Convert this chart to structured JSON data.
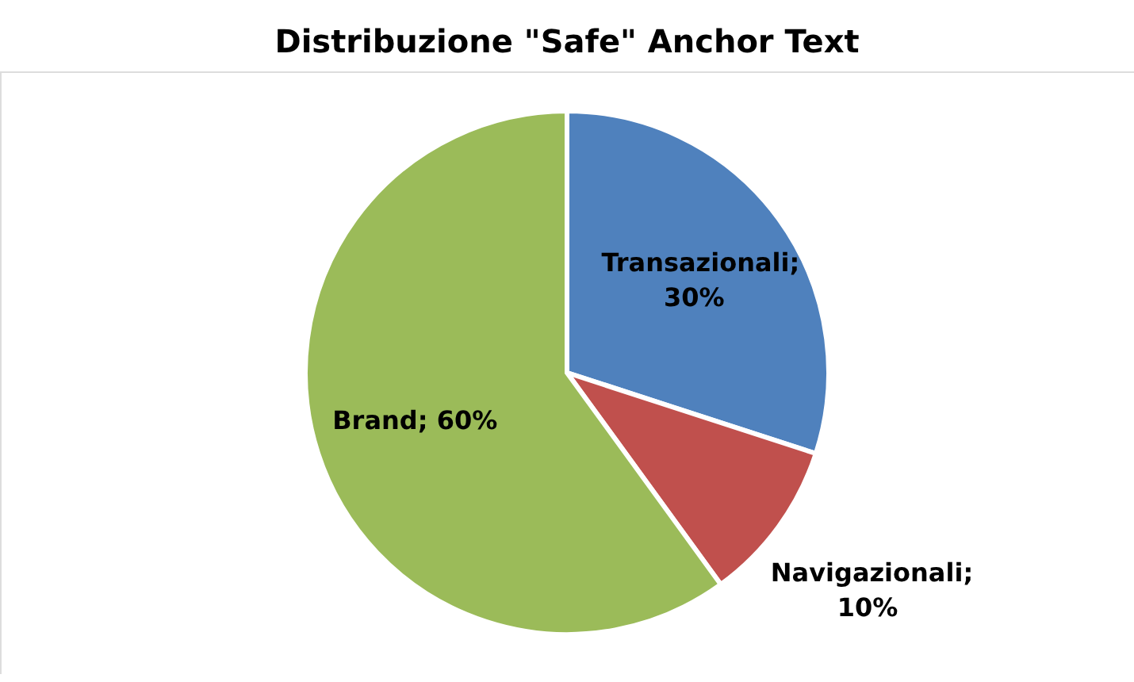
{
  "chart_data": {
    "type": "pie",
    "title": "Distribuzione \"Safe\" Anchor Text",
    "categories": [
      "Transazionali",
      "Navigazionali",
      "Brand"
    ],
    "values": [
      30,
      10,
      60
    ],
    "colors": [
      "#4f81bd",
      "#c0504d",
      "#9bbb59"
    ],
    "value_labels": [
      "; 30%",
      "; 10%",
      "; 60%"
    ],
    "legend": false
  }
}
